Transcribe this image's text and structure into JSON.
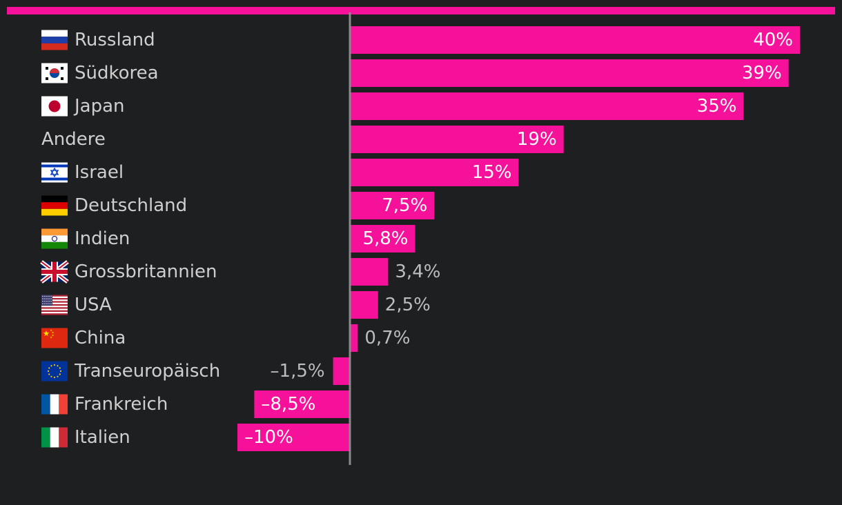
{
  "colors": {
    "background": "#1e1f21",
    "accent": "#f5119a",
    "axis": "#8a8a8a",
    "label_text": "#cfcfcf",
    "value_inside": "#ffffff",
    "value_outside": "#bdbdbd"
  },
  "chart_data": {
    "type": "bar",
    "orientation": "horizontal",
    "title": "",
    "xlabel": "",
    "ylabel": "",
    "grid": false,
    "legend": "none",
    "xlim": [
      -10,
      40
    ],
    "categories": [
      "Russland",
      "Südkorea",
      "Japan",
      "Andere",
      "Israel",
      "Deutschland",
      "Indien",
      "Grossbritannien",
      "USA",
      "China",
      "Transeuropäisch",
      "Frankreich",
      "Italien"
    ],
    "values": [
      40,
      39,
      35,
      19,
      15,
      7.5,
      5.8,
      3.4,
      2.5,
      0.7,
      -1.5,
      -8.5,
      -10
    ],
    "value_labels": [
      "40%",
      "39%",
      "35%",
      "19%",
      "15%",
      "7,5%",
      "5,8%",
      "3,4%",
      "2,5%",
      "0,7%",
      "–1,5%",
      "–8,5%",
      "–10%"
    ],
    "flags": [
      "russia-flag-icon",
      "south-korea-flag-icon",
      "japan-flag-icon",
      "",
      "israel-flag-icon",
      "germany-flag-icon",
      "india-flag-icon",
      "uk-flag-icon",
      "usa-flag-icon",
      "china-flag-icon",
      "eu-flag-icon",
      "france-flag-icon",
      "italy-flag-icon"
    ]
  }
}
